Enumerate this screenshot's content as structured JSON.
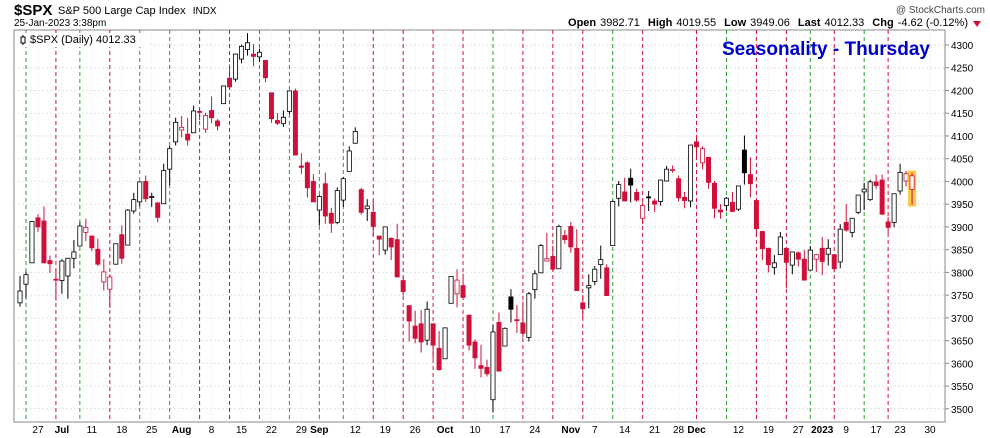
{
  "chart_data": {
    "type": "candlestick",
    "header": {
      "symbol": "$SPX",
      "name": "S&P 500 Large Cap Index",
      "exchange": "INDX",
      "credit": "@ StockCharts.com",
      "timestamp": "25-Jan-2023 3:38pm",
      "quote": [
        {
          "label": "Open",
          "value": "3982.71"
        },
        {
          "label": "High",
          "value": "4019.55"
        },
        {
          "label": "Low",
          "value": "3949.06"
        },
        {
          "label": "Last",
          "value": "4012.33"
        },
        {
          "label": "Chg",
          "value": "-4.62 (-0.12%)"
        }
      ]
    },
    "annotation": "Seasonality - Thursday",
    "annotation_color": "#0000cc",
    "categories": [
      null,
      null,
      null,
      "27",
      null,
      null,
      null,
      "Jul",
      null,
      null,
      null,
      null,
      "11",
      null,
      null,
      null,
      null,
      "18",
      null,
      null,
      null,
      null,
      "25",
      null,
      null,
      null,
      null,
      "Aug",
      null,
      null,
      null,
      null,
      "8",
      null,
      null,
      null,
      null,
      "15",
      null,
      null,
      null,
      null,
      "22",
      null,
      null,
      null,
      null,
      "29",
      null,
      null,
      "Sep",
      null,
      null,
      null,
      null,
      null,
      "12",
      null,
      null,
      null,
      null,
      "19",
      null,
      null,
      null,
      null,
      "26",
      null,
      null,
      null,
      null,
      "Oct",
      null,
      null,
      null,
      null,
      "10",
      null,
      null,
      null,
      null,
      "17",
      null,
      null,
      null,
      null,
      "24",
      null,
      null,
      null,
      null,
      null,
      "Nov",
      null,
      null,
      null,
      "7",
      null,
      null,
      null,
      null,
      "14",
      null,
      null,
      null,
      null,
      "21",
      null,
      null,
      null,
      "28",
      null,
      null,
      "Dec",
      null,
      null,
      null,
      null,
      null,
      null,
      "12",
      null,
      null,
      null,
      null,
      "19",
      null,
      null,
      null,
      null,
      "27",
      null,
      null,
      null,
      "2023",
      null,
      null,
      null,
      "9",
      null,
      null,
      null,
      null,
      "17",
      null,
      null,
      null,
      "23",
      null,
      null,
      null,
      null,
      "30",
      null,
      null
    ],
    "thursday_lines": [
      null,
      "green",
      null,
      null,
      null,
      null,
      "red",
      null,
      null,
      null,
      "green",
      null,
      null,
      null,
      null,
      "red",
      null,
      null,
      null,
      null,
      "green",
      null,
      null,
      null,
      null,
      "green",
      null,
      null,
      null,
      null,
      "red",
      null,
      null,
      null,
      null,
      "red",
      null,
      null,
      null,
      null,
      "green",
      null,
      null,
      null,
      null,
      "green",
      null,
      null,
      null,
      null,
      "green",
      null,
      null,
      null,
      "green",
      null,
      null,
      null,
      null,
      "red",
      null,
      null,
      null,
      null,
      "red",
      null,
      null,
      null,
      null,
      "red",
      null,
      null,
      null,
      null,
      "red",
      null,
      null,
      null,
      null,
      "green",
      null,
      null,
      null,
      null,
      "red",
      null,
      null,
      null,
      null,
      "red",
      null,
      null,
      null,
      null,
      "red",
      null,
      null,
      null,
      null,
      "green",
      null,
      null,
      null,
      null,
      "red",
      null,
      null,
      null,
      null,
      null,
      null,
      null,
      null,
      "red",
      null,
      null,
      null,
      null,
      "green",
      null,
      null,
      null,
      null,
      "red",
      null,
      null,
      null,
      null,
      "red",
      null,
      null,
      null,
      "green",
      null,
      null,
      null,
      "red",
      null,
      null,
      null,
      null,
      "green",
      null,
      null,
      null,
      "red",
      null,
      null,
      null,
      null,
      null,
      null,
      null,
      null,
      null
    ],
    "line_colors": {
      "green": "#2e9e2e",
      "red": "#d0103a"
    },
    "up_color": "#000000",
    "down_color": "#d0103a",
    "highlight_color": "#f5b800",
    "series": [
      {
        "name": "$SPX (Daily) 4012.33",
        "open": [
          3733,
          3774,
          3821,
          3920,
          3913,
          3826,
          3785,
          3782,
          3792,
          3831,
          3858,
          3888,
          3880,
          3851,
          3779,
          3763,
          3818,
          3883,
          3860,
          3935,
          3955,
          4000,
          3966,
          3953,
          3951,
          4027,
          4087,
          4113,
          4104,
          4107,
          4154,
          4115,
          4156,
          4133,
          4171,
          4227,
          4225,
          4269,
          4290,
          4280,
          4274,
          4266,
          4195,
          4134,
          4127,
          4154,
          4199,
          4034,
          4041,
          4000,
          3937,
          3995,
          3930,
          3910,
          3959,
          4022,
          4084,
          3982,
          3940,
          3932,
          3880,
          3849,
          3875,
          3872,
          3782,
          3727,
          3682,
          3687,
          3651,
          3687,
          3633,
          3610,
          3732,
          3753,
          3771,
          3706,
          3647,
          3595,
          3591,
          3520,
          3690,
          3638,
          3746,
          3696,
          3689,
          3657,
          3762,
          3799,
          3825,
          3835,
          3808,
          3881,
          3901,
          3853,
          3733,
          3766,
          3780,
          3817,
          3810,
          3859,
          3963,
          3977,
          4007,
          3976,
          3919,
          3966,
          3957,
          3956,
          4001,
          4024,
          4006,
          3965,
          3957,
          4087,
          4041,
          4053,
          3996,
          3937,
          3947,
          3954,
          3939,
          4069,
          4015,
          3958,
          3890,
          3853,
          3811,
          3839,
          3853,
          3816,
          3843,
          3829,
          3805,
          3829,
          3853,
          3840,
          3839,
          3823,
          3910,
          3888,
          3932,
          3977,
          3960,
          3999,
          4003,
          3911,
          3910,
          3979,
          4001,
          3982.71,
          null,
          null,
          null,
          null,
          null
        ],
        "high": [
          3792,
          3802,
          3913,
          3928,
          3945,
          3837,
          3807,
          3829,
          3832,
          3871,
          3910,
          3918,
          3880,
          3874,
          3829,
          3796,
          3863,
          3903,
          3939,
          3975,
          4000,
          4013,
          3975,
          3954,
          4039,
          4078,
          4140,
          4144,
          4140,
          4167,
          4161,
          4151,
          4187,
          4137,
          4211,
          4257,
          4281,
          4301,
          4326,
          4302,
          4292,
          4266,
          4195,
          4150,
          4156,
          4200,
          4204,
          4062,
          4044,
          4016,
          3970,
          4019,
          3942,
          3987,
          4010,
          4077,
          4119,
          3986,
          3961,
          3957,
          3880,
          3900,
          3877,
          3907,
          3791,
          3727,
          3716,
          3717,
          3736,
          3687,
          3671,
          3679,
          3791,
          3807,
          3797,
          3707,
          3653,
          3641,
          3608,
          3685,
          3712,
          3679,
          3763,
          3728,
          3736,
          3757,
          3805,
          3862,
          3887,
          3859,
          3905,
          3893,
          3911,
          3895,
          3750,
          3796,
          3814,
          3859,
          3818,
          3958,
          4001,
          4008,
          4028,
          3984,
          3954,
          3979,
          3962,
          4004,
          4034,
          4035,
          4013,
          3977,
          4080,
          4101,
          4077,
          4053,
          4001,
          3950,
          3966,
          3977,
          3990,
          4101,
          4053,
          3958,
          3890,
          3854,
          3838,
          3889,
          3853,
          3846,
          3846,
          3849,
          3858,
          3840,
          3878,
          3873,
          3839,
          3906,
          3950,
          3920,
          3970,
          3997,
          4004,
          4015,
          4015,
          3922,
          3973,
          4039,
          4023,
          4019.55,
          null,
          null,
          null,
          null,
          null
        ],
        "low": [
          3725,
          3744,
          3821,
          3889,
          3820,
          3799,
          3738,
          3753,
          3742,
          3809,
          3858,
          3869,
          3847,
          3814,
          3760,
          3722,
          3817,
          3819,
          3860,
          3929,
          3945,
          3955,
          3944,
          3910,
          3951,
          3992,
          4079,
          4097,
          4079,
          4107,
          4135,
          4107,
          4128,
          4112,
          4171,
          4201,
          4219,
          4260,
          4277,
          4253,
          4263,
          4218,
          4129,
          4124,
          4120,
          4148,
          4057,
          4017,
          3965,
          3955,
          3903,
          3907,
          3887,
          3906,
          3944,
          4022,
          4083,
          3927,
          3913,
          3880,
          3838,
          3839,
          3827,
          3789,
          3749,
          3648,
          3644,
          3624,
          3640,
          3610,
          3584,
          3610,
          3732,
          3723,
          3744,
          3628,
          3588,
          3569,
          3571,
          3492,
          3584,
          3638,
          3690,
          3667,
          3657,
          3648,
          3742,
          3799,
          3824,
          3803,
          3808,
          3863,
          3843,
          3759,
          3699,
          3721,
          3772,
          3786,
          3749,
          3859,
          3945,
          3957,
          3954,
          3955,
          3906,
          3935,
          3933,
          3947,
          4000,
          4019,
          3956,
          3941,
          3943,
          4050,
          4027,
          3984,
          3919,
          3918,
          3935,
          3933,
          3935,
          3993,
          3965,
          3879,
          3827,
          3800,
          3795,
          3839,
          3765,
          3796,
          3813,
          3782,
          3805,
          3801,
          3794,
          3815,
          3802,
          3809,
          3890,
          3877,
          3928,
          3937,
          3957,
          3984,
          3926,
          3886,
          3899,
          3971,
          3989,
          3949.06,
          null,
          null,
          null,
          null,
          null
        ],
        "close": [
          3759,
          3795,
          3912,
          3900,
          3821,
          3819,
          3785,
          3825,
          3831,
          3845,
          3902,
          3899,
          3854,
          3818,
          3801,
          3790,
          3863,
          3831,
          3937,
          3960,
          3999,
          3962,
          3967,
          3921,
          4024,
          4072,
          4130,
          4119,
          4091,
          4155,
          4152,
          4145,
          4140,
          4122,
          4210,
          4208,
          4280,
          4297,
          4305,
          4275,
          4284,
          4228,
          4138,
          4128,
          4141,
          4199,
          4058,
          4031,
          3986,
          3955,
          3967,
          3924,
          3908,
          3980,
          4006,
          4067,
          4110,
          3932,
          3946,
          3901,
          3873,
          3900,
          3856,
          3790,
          3758,
          3693,
          3655,
          3647,
          3719,
          3640,
          3586,
          3678,
          3791,
          3783,
          3745,
          3640,
          3612,
          3589,
          3577,
          3669,
          3583,
          3677,
          3719,
          3695,
          3666,
          3753,
          3797,
          3859,
          3830,
          3807,
          3901,
          3872,
          3856,
          3760,
          3720,
          3771,
          3807,
          3828,
          3749,
          3956,
          3993,
          3957,
          3992,
          3959,
          3947,
          3965,
          3950,
          4003,
          4027,
          4026,
          3964,
          3958,
          4080,
          4076,
          4072,
          3998,
          3941,
          3933,
          3963,
          3934,
          3990,
          4019,
          3995,
          3896,
          3852,
          3817,
          3821,
          3878,
          3822,
          3845,
          3829,
          3783,
          3849,
          3839,
          3824,
          3853,
          3808,
          3895,
          3893,
          3919,
          3970,
          3983,
          3999,
          3991,
          3928,
          3899,
          3973,
          4020,
          4017,
          4012.33,
          null,
          null,
          null,
          null,
          null
        ]
      }
    ],
    "ylim": [
      3471,
      4333
    ],
    "yticks": [
      3500,
      3550,
      3600,
      3650,
      3700,
      3750,
      3800,
      3850,
      3900,
      3950,
      4000,
      4050,
      4100,
      4150,
      4200,
      4250,
      4300
    ],
    "grid": true
  }
}
